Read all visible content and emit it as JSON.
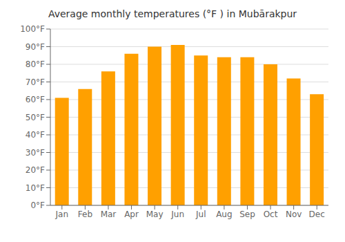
{
  "chart_data": {
    "type": "bar",
    "title": "Average monthly temperatures (°F ) in Mubārakpur",
    "categories": [
      "Jan",
      "Feb",
      "Mar",
      "Apr",
      "May",
      "Jun",
      "Jul",
      "Aug",
      "Sep",
      "Oct",
      "Nov",
      "Dec"
    ],
    "values": [
      61,
      66,
      76,
      86,
      90,
      91,
      85,
      84,
      84,
      80,
      72,
      63
    ],
    "color": "#FFA000",
    "ylim": [
      0,
      100
    ],
    "yticks": [
      {
        "value": 0,
        "label": "0°F"
      },
      {
        "value": 10,
        "label": "10°F"
      },
      {
        "value": 20,
        "label": "20°F"
      },
      {
        "value": 30,
        "label": "30°F"
      },
      {
        "value": 40,
        "label": "40°F"
      },
      {
        "value": 50,
        "label": "50°F"
      },
      {
        "value": 60,
        "label": "60°F"
      },
      {
        "value": 70,
        "label": "70°F"
      },
      {
        "value": 80,
        "label": "80°F"
      },
      {
        "value": 90,
        "label": "90°F"
      },
      {
        "value": 100,
        "label": "100°F"
      }
    ],
    "grid": true
  }
}
